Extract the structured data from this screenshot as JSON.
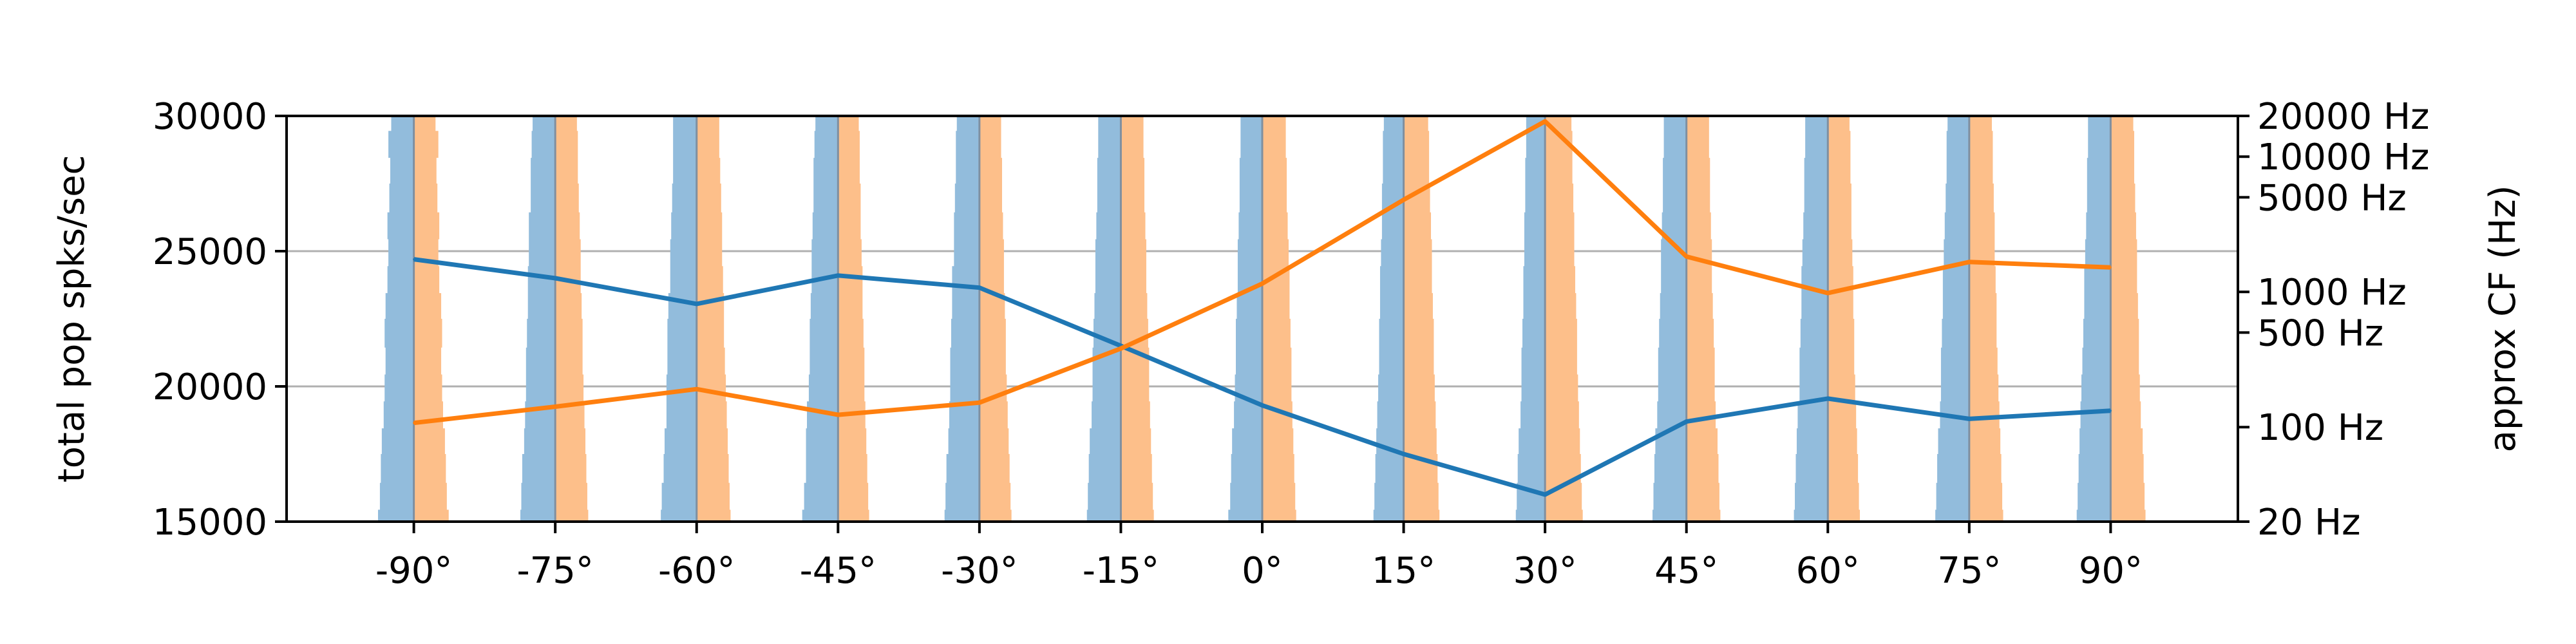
{
  "chart_data": {
    "type": "line",
    "xlabel": "",
    "ylabel": "total pop spks/sec",
    "y2label": "approx CF (Hz)",
    "ylim": [
      15000,
      30000
    ],
    "yticks": [
      15000,
      20000,
      25000,
      30000
    ],
    "y2scale": "log",
    "y2lim_hz": [
      20,
      20000
    ],
    "y2ticks": [
      {
        "value": 20,
        "label": "20 Hz"
      },
      {
        "value": 100,
        "label": "100 Hz"
      },
      {
        "value": 500,
        "label": "500 Hz"
      },
      {
        "value": 1000,
        "label": "1000 Hz"
      },
      {
        "value": 5000,
        "label": "5000 Hz"
      },
      {
        "value": 10000,
        "label": "10000 Hz"
      },
      {
        "value": 20000,
        "label": "20000 Hz"
      }
    ],
    "grid_y": [
      20000,
      25000
    ],
    "categories": [
      "-90°",
      "-75°",
      "-60°",
      "-45°",
      "-30°",
      "-15°",
      "0°",
      "15°",
      "30°",
      "45°",
      "60°",
      "75°",
      "90°"
    ],
    "x": [
      -90,
      -75,
      -60,
      -45,
      -30,
      -15,
      0,
      15,
      30,
      45,
      60,
      75,
      90
    ],
    "xlim": [
      -103.5,
      103.5
    ],
    "series": [
      {
        "color": "#1f77b4",
        "values": [
          24700,
          24000,
          23050,
          24100,
          23650,
          21500,
          19300,
          17500,
          16000,
          18700,
          19550,
          18800,
          19100
        ]
      },
      {
        "color": "#ff7f0e",
        "values": [
          18650,
          19250,
          19900,
          18950,
          19400,
          21400,
          23800,
          26900,
          29800,
          24800,
          23450,
          24600,
          24400
        ]
      }
    ],
    "profile_colors": {
      "left": "#92bcdc",
      "right": "#fdbf8a",
      "line": "#7f8fa0"
    },
    "profiles": {
      "x_offsets": [
        -90,
        -75,
        -60,
        -45,
        -30,
        -15,
        0,
        15,
        30,
        45,
        60,
        75,
        90
      ],
      "cf_hz": [
        20,
        30,
        50,
        80,
        120,
        200,
        300,
        500,
        800,
        1200,
        2000,
        3000,
        5000,
        8000,
        12000,
        20000
      ],
      "left": [
        [
          3.8,
          3.6,
          3.5,
          3.4,
          3.2,
          3.1,
          3.0,
          3.1,
          3.0,
          2.8,
          2.7,
          2.8,
          2.6,
          2.5,
          2.7,
          2.4
        ],
        [
          3.7,
          3.6,
          3.5,
          3.3,
          3.2,
          3.1,
          3.1,
          3.0,
          2.9,
          2.9,
          2.8,
          2.8,
          2.6,
          2.6,
          2.5,
          2.4
        ],
        [
          3.8,
          3.7,
          3.5,
          3.4,
          3.2,
          3.2,
          3.1,
          3.1,
          3.0,
          2.8,
          2.8,
          2.7,
          2.6,
          2.5,
          2.5,
          2.5
        ],
        [
          3.8,
          3.6,
          3.4,
          3.4,
          3.3,
          3.1,
          3.0,
          3.0,
          2.9,
          2.8,
          2.8,
          2.7,
          2.6,
          2.6,
          2.5,
          2.4
        ],
        [
          3.7,
          3.6,
          3.5,
          3.3,
          3.2,
          3.1,
          3.1,
          3.0,
          2.9,
          2.9,
          2.7,
          2.7,
          2.6,
          2.5,
          2.5,
          2.4
        ],
        [
          3.6,
          3.5,
          3.4,
          3.3,
          3.1,
          3.0,
          3.0,
          2.9,
          2.8,
          2.7,
          2.7,
          2.6,
          2.5,
          2.5,
          2.4,
          2.4
        ],
        [
          3.6,
          3.4,
          3.3,
          3.2,
          3.0,
          2.9,
          2.8,
          2.8,
          2.7,
          2.6,
          2.6,
          2.5,
          2.4,
          2.4,
          2.3,
          2.3
        ],
        [
          3.2,
          3.1,
          3.0,
          2.9,
          2.8,
          2.7,
          2.6,
          2.6,
          2.5,
          2.5,
          2.4,
          2.3,
          2.3,
          2.2,
          2.2,
          2.1
        ],
        [
          3.1,
          3.0,
          2.9,
          2.8,
          2.6,
          2.5,
          2.5,
          2.4,
          2.3,
          2.3,
          2.2,
          2.2,
          2.1,
          2.1,
          2.0,
          2.0
        ],
        [
          3.6,
          3.5,
          3.4,
          3.3,
          3.1,
          3.0,
          3.0,
          2.9,
          2.8,
          2.7,
          2.7,
          2.6,
          2.5,
          2.5,
          2.4,
          2.4
        ],
        [
          3.6,
          3.5,
          3.4,
          3.3,
          3.2,
          3.0,
          3.0,
          2.9,
          2.8,
          2.8,
          2.7,
          2.6,
          2.5,
          2.5,
          2.4,
          2.4
        ],
        [
          3.6,
          3.5,
          3.4,
          3.3,
          3.1,
          3.0,
          3.0,
          2.9,
          2.8,
          2.8,
          2.7,
          2.6,
          2.5,
          2.4,
          2.4,
          2.3
        ],
        [
          3.6,
          3.5,
          3.4,
          3.3,
          3.2,
          3.1,
          3.0,
          2.9,
          2.8,
          2.8,
          2.7,
          2.6,
          2.5,
          2.5,
          2.4,
          2.4
        ]
      ],
      "right": [
        [
          3.7,
          3.5,
          3.4,
          3.3,
          3.1,
          3.0,
          2.9,
          3.0,
          2.9,
          2.7,
          2.6,
          2.7,
          2.5,
          2.4,
          2.6,
          2.3
        ],
        [
          3.5,
          3.4,
          3.3,
          3.2,
          3.1,
          3.0,
          2.9,
          2.9,
          2.8,
          2.7,
          2.7,
          2.6,
          2.5,
          2.4,
          2.4,
          2.3
        ],
        [
          3.6,
          3.5,
          3.4,
          3.3,
          3.2,
          3.1,
          3.0,
          2.9,
          2.9,
          2.8,
          2.7,
          2.7,
          2.6,
          2.5,
          2.4,
          2.4
        ],
        [
          3.3,
          3.2,
          3.1,
          3.0,
          2.9,
          2.8,
          2.8,
          2.7,
          2.6,
          2.6,
          2.5,
          2.4,
          2.4,
          2.3,
          2.3,
          2.2
        ],
        [
          3.4,
          3.3,
          3.2,
          3.1,
          3.0,
          2.9,
          2.8,
          2.8,
          2.7,
          2.6,
          2.6,
          2.5,
          2.4,
          2.4,
          2.3,
          2.3
        ],
        [
          3.5,
          3.4,
          3.3,
          3.2,
          3.1,
          3.0,
          3.0,
          2.9,
          2.8,
          2.7,
          2.7,
          2.6,
          2.5,
          2.5,
          2.4,
          2.4
        ],
        [
          3.6,
          3.5,
          3.4,
          3.3,
          3.2,
          3.1,
          3.1,
          3.0,
          2.9,
          2.9,
          2.8,
          2.7,
          2.6,
          2.6,
          2.5,
          2.5
        ],
        [
          3.8,
          3.7,
          3.6,
          3.5,
          3.4,
          3.3,
          3.2,
          3.2,
          3.1,
          3.0,
          3.0,
          2.9,
          2.8,
          2.7,
          2.7,
          2.6
        ],
        [
          4.0,
          3.9,
          3.8,
          3.7,
          3.6,
          3.5,
          3.4,
          3.4,
          3.3,
          3.2,
          3.1,
          3.1,
          3.0,
          2.9,
          2.9,
          2.8
        ],
        [
          3.6,
          3.5,
          3.4,
          3.3,
          3.1,
          3.0,
          3.0,
          2.9,
          2.8,
          2.7,
          2.7,
          2.6,
          2.5,
          2.5,
          2.4,
          2.4
        ],
        [
          3.4,
          3.3,
          3.2,
          3.1,
          3.0,
          2.9,
          2.8,
          2.8,
          2.7,
          2.7,
          2.6,
          2.5,
          2.5,
          2.4,
          2.4,
          2.3
        ],
        [
          3.6,
          3.5,
          3.4,
          3.3,
          3.2,
          3.1,
          3.0,
          2.9,
          2.9,
          2.8,
          2.7,
          2.7,
          2.6,
          2.5,
          2.5,
          2.4
        ],
        [
          3.7,
          3.6,
          3.5,
          3.4,
          3.2,
          3.1,
          3.0,
          3.0,
          2.9,
          2.8,
          2.8,
          2.7,
          2.6,
          2.5,
          2.5,
          2.4
        ]
      ]
    }
  }
}
